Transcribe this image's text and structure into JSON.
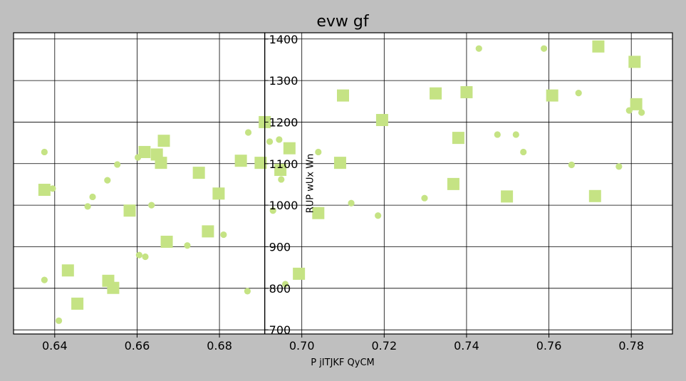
{
  "chart_data": {
    "type": "scatter",
    "title": "evw gf",
    "xlabel": "P jITJKF QyCM",
    "ylabel": "RUP wUx Wn",
    "xlim": [
      0.63,
      0.79
    ],
    "ylim": [
      690,
      1415
    ],
    "x_ticks": [
      0.64,
      0.66,
      0.68,
      0.7,
      0.72,
      0.74,
      0.76,
      0.78
    ],
    "x_tick_labels": [
      "0.64",
      "0.66",
      "0.68",
      "0.70",
      "0.72",
      "0.74",
      "0.76",
      "0.78"
    ],
    "y_ticks": [
      700,
      800,
      900,
      1000,
      1100,
      1200,
      1300,
      1400
    ],
    "y_tick_labels": [
      "700",
      "800",
      "900",
      "1000",
      "1100",
      "1200",
      "1300",
      "1400"
    ],
    "y_axis_at_x": 0.691,
    "grid": true,
    "background": "#ffffff",
    "marker_color": "#c5e384",
    "series": [
      {
        "marker": "square",
        "points": [
          [
            0.6375,
            1037
          ],
          [
            0.6432,
            843
          ],
          [
            0.6455,
            763
          ],
          [
            0.653,
            818
          ],
          [
            0.6542,
            801
          ],
          [
            0.6582,
            987
          ],
          [
            0.6618,
            1128
          ],
          [
            0.6648,
            1122
          ],
          [
            0.6658,
            1102
          ],
          [
            0.6665,
            1155
          ],
          [
            0.6672,
            912
          ],
          [
            0.675,
            1078
          ],
          [
            0.6772,
            937
          ],
          [
            0.6798,
            1028
          ],
          [
            0.6852,
            1107
          ],
          [
            0.69,
            1102
          ],
          [
            0.691,
            1200
          ],
          [
            0.6948,
            1085
          ],
          [
            0.697,
            1137
          ],
          [
            0.6993,
            835
          ],
          [
            0.704,
            981
          ],
          [
            0.7093,
            1102
          ],
          [
            0.71,
            1264
          ],
          [
            0.7195,
            1205
          ],
          [
            0.7325,
            1269
          ],
          [
            0.7368,
            1051
          ],
          [
            0.738,
            1162
          ],
          [
            0.74,
            1272
          ],
          [
            0.7498,
            1021
          ],
          [
            0.7608,
            1264
          ],
          [
            0.7712,
            1022
          ],
          [
            0.772,
            1382
          ],
          [
            0.7808,
            1345
          ],
          [
            0.7812,
            1243
          ]
        ]
      },
      {
        "marker": "circle",
        "points": [
          [
            0.6375,
            1128
          ],
          [
            0.6375,
            820
          ],
          [
            0.6395,
            1040
          ],
          [
            0.641,
            722
          ],
          [
            0.648,
            997
          ],
          [
            0.6492,
            1020
          ],
          [
            0.6528,
            1060
          ],
          [
            0.6552,
            1098
          ],
          [
            0.6602,
            1115
          ],
          [
            0.6605,
            880
          ],
          [
            0.662,
            876
          ],
          [
            0.6635,
            1000
          ],
          [
            0.6722,
            903
          ],
          [
            0.681,
            929
          ],
          [
            0.6868,
            793
          ],
          [
            0.687,
            1175
          ],
          [
            0.6922,
            1153
          ],
          [
            0.693,
            987
          ],
          [
            0.6945,
            1158
          ],
          [
            0.695,
            1062
          ],
          [
            0.696,
            810
          ],
          [
            0.704,
            1128
          ],
          [
            0.712,
            1005
          ],
          [
            0.7185,
            975
          ],
          [
            0.7298,
            1017
          ],
          [
            0.743,
            1377
          ],
          [
            0.7475,
            1170
          ],
          [
            0.752,
            1170
          ],
          [
            0.7538,
            1128
          ],
          [
            0.7588,
            1377
          ],
          [
            0.7655,
            1097
          ],
          [
            0.7672,
            1270
          ],
          [
            0.777,
            1093
          ],
          [
            0.7795,
            1228
          ],
          [
            0.7825,
            1223
          ]
        ]
      }
    ]
  }
}
